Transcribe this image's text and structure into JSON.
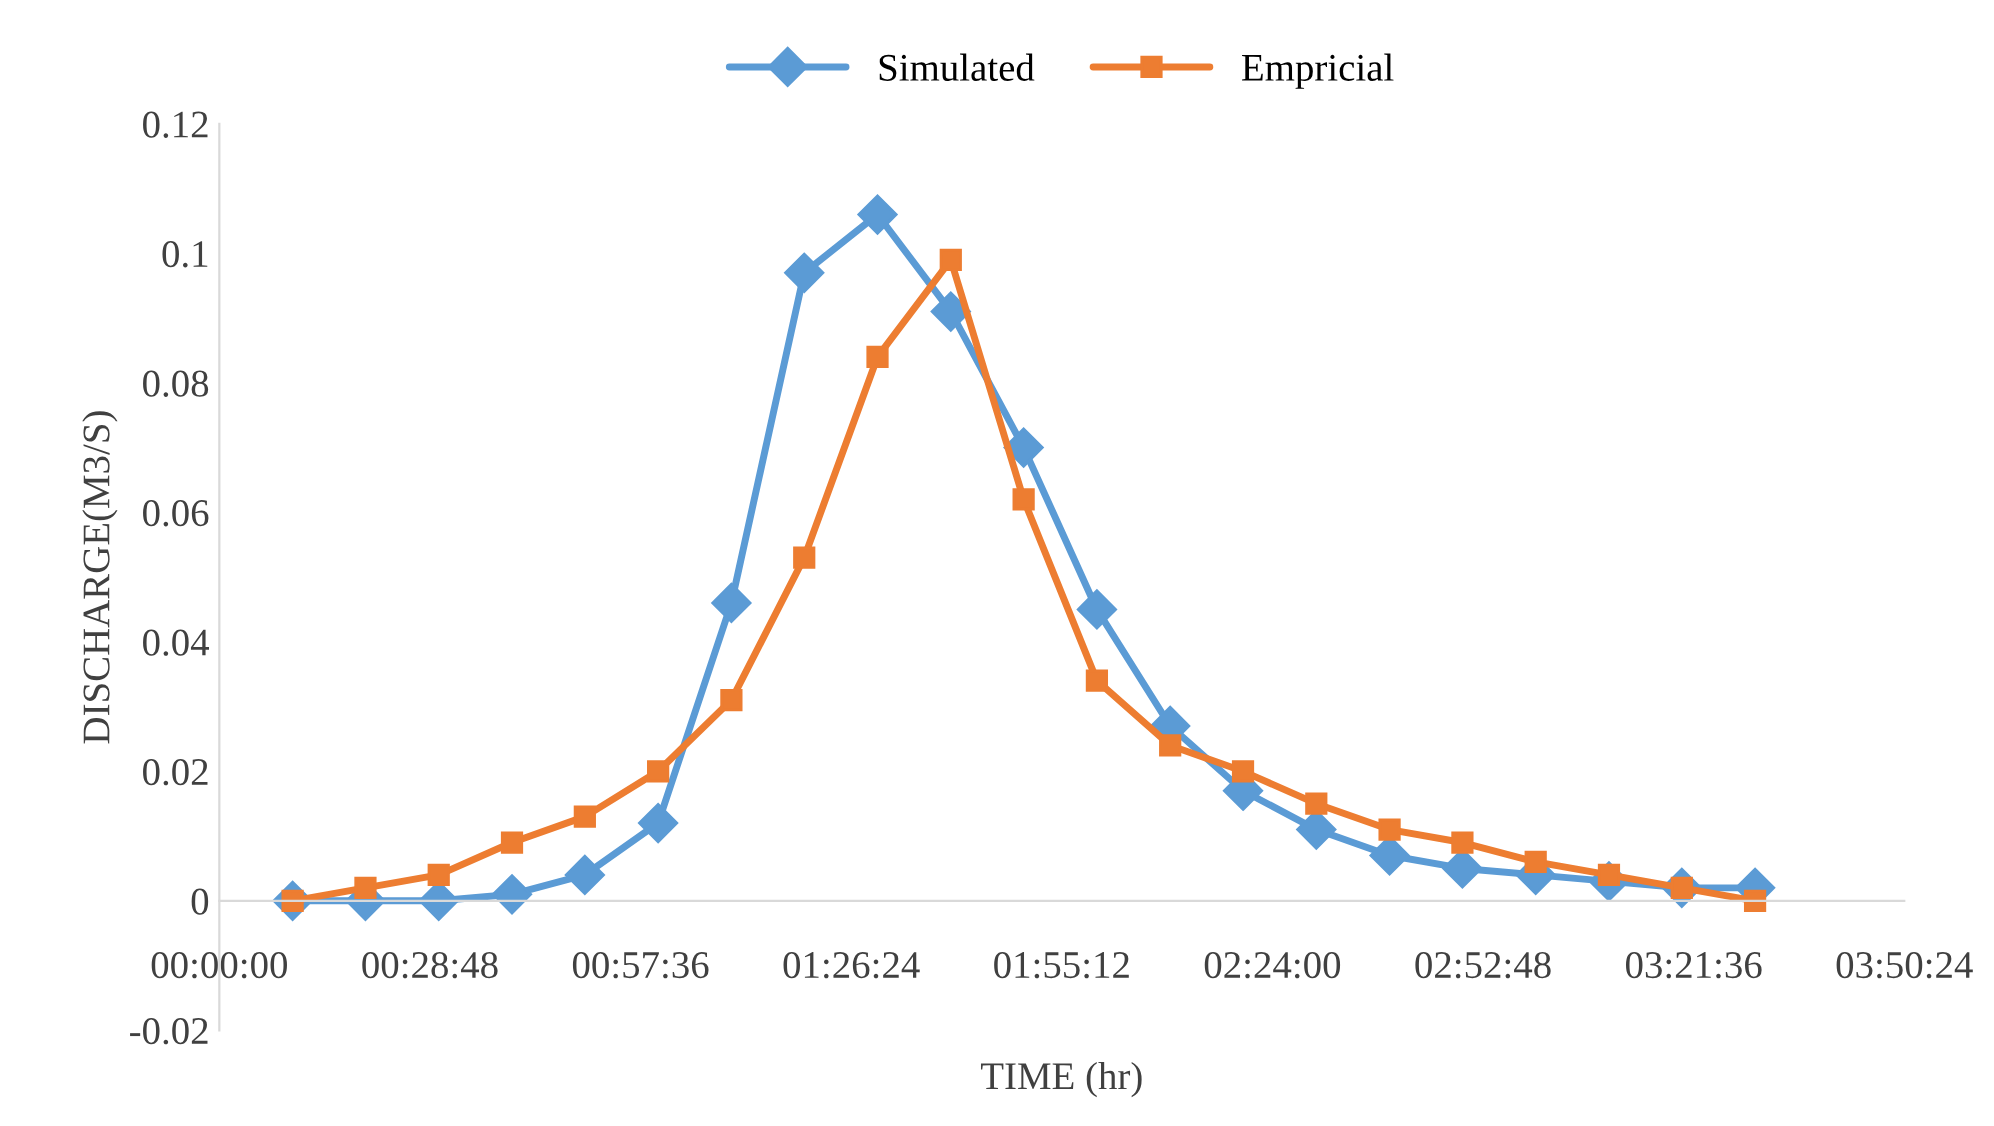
{
  "chart_data": {
    "type": "line",
    "xlabel": "TIME (hr)",
    "ylabel": "DISCHARGE(M3/S)",
    "legend": "top",
    "grid": false,
    "line_style": "solid",
    "x": [
      0.167,
      0.333,
      0.5,
      0.667,
      0.833,
      1.0,
      1.167,
      1.333,
      1.5,
      1.667,
      1.833,
      2.0,
      2.167,
      2.333,
      2.5,
      2.667,
      2.833,
      3.0,
      3.167,
      3.333,
      3.5
    ],
    "series": [
      {
        "name": "Simulated",
        "color": "#5b9bd5",
        "marker": "diamond",
        "values": [
          0,
          0,
          0,
          0.001,
          0.004,
          0.012,
          0.046,
          0.097,
          0.106,
          0.091,
          0.07,
          0.045,
          0.027,
          0.017,
          0.011,
          0.007,
          0.005,
          0.004,
          0.003,
          0.002,
          0.002
        ]
      },
      {
        "name": "Empricial",
        "color": "#ed7d31",
        "marker": "square",
        "values": [
          0,
          0.002,
          0.004,
          0.009,
          0.013,
          0.02,
          0.031,
          0.053,
          0.084,
          0.099,
          0.062,
          0.034,
          0.024,
          0.02,
          0.015,
          0.011,
          0.009,
          0.006,
          0.004,
          0.002,
          0
        ]
      }
    ],
    "xlim": [
      0,
      3.84
    ],
    "xticks": [
      {
        "value": 0,
        "label": "00:00:00"
      },
      {
        "value": 0.48,
        "label": "00:28:48"
      },
      {
        "value": 0.96,
        "label": "00:57:36"
      },
      {
        "value": 1.44,
        "label": "01:26:24"
      },
      {
        "value": 1.92,
        "label": "01:55:12"
      },
      {
        "value": 2.4,
        "label": "02:24:00"
      },
      {
        "value": 2.88,
        "label": "02:52:48"
      },
      {
        "value": 3.36,
        "label": "03:21:36"
      },
      {
        "value": 3.84,
        "label": "03:50:24"
      }
    ],
    "ylim": [
      -0.02,
      0.12
    ],
    "yticks": [
      {
        "value": -0.02,
        "label": "-0.02"
      },
      0,
      {
        "value": 0.02,
        "label": "0.02"
      },
      {
        "value": 0.04,
        "label": "0.04"
      },
      {
        "value": 0.06,
        "label": "0.06"
      },
      {
        "value": 0.08,
        "label": "0.08"
      },
      0.1,
      0.12
    ]
  }
}
